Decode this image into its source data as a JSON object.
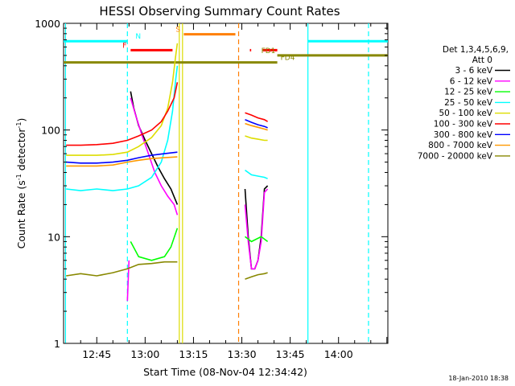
{
  "chart_data": {
    "type": "line",
    "title": "HESSI Observing Summary Count Rates",
    "xlabel": "Start Time (08-Nov-04 12:34:42)",
    "ylabel_main": "Count Rate (s",
    "ylabel_sup1": "-1",
    "ylabel_mid": " detector",
    "ylabel_sup2": "-1",
    "ylabel_end": ")",
    "y_scale": "log",
    "ylim": [
      1,
      1000
    ],
    "xlim_minutes": [
      34.7,
      135.3
    ],
    "x_ticks": [
      {
        "label": "12:45",
        "minute": 45
      },
      {
        "label": "13:00",
        "minute": 60
      },
      {
        "label": "13:15",
        "minute": 75
      },
      {
        "label": "13:30",
        "minute": 90
      },
      {
        "label": "13:45",
        "minute": 105
      },
      {
        "label": "14:00",
        "minute": 120
      }
    ],
    "y_ticks": [
      {
        "label": "1",
        "value": 1
      },
      {
        "label": "10",
        "value": 10
      },
      {
        "label": "100",
        "value": 100
      },
      {
        "label": "1000",
        "value": 1000
      }
    ],
    "legend": {
      "header1": "Det 1,3,4,5,6,9,",
      "header2": "Att 0",
      "placement": "right"
    },
    "series": [
      {
        "name": "3 - 6 keV",
        "color": "#000000",
        "segments": [
          [
            [
              55.5,
              230
            ],
            [
              56.5,
              160
            ],
            [
              58,
              110
            ],
            [
              60,
              80
            ],
            [
              62,
              60
            ],
            [
              64,
              45
            ],
            [
              66,
              35
            ],
            [
              68,
              28
            ],
            [
              70,
              20
            ]
          ],
          [
            [
              91,
              28
            ],
            [
              92,
              10
            ],
            [
              93,
              5
            ],
            [
              94,
              5
            ],
            [
              95,
              6
            ],
            [
              96,
              10
            ],
            [
              97,
              28
            ],
            [
              98,
              30
            ]
          ]
        ]
      },
      {
        "name": "6 - 12 keV",
        "color": "#ff00ff",
        "segments": [
          [
            [
              54.5,
              2.5
            ],
            [
              55,
              6
            ]
          ],
          [
            [
              55.5,
              200
            ],
            [
              57,
              140
            ],
            [
              59,
              90
            ],
            [
              61,
              60
            ],
            [
              63,
              40
            ],
            [
              65,
              30
            ],
            [
              67,
              24
            ],
            [
              69,
              20
            ],
            [
              70,
              16
            ]
          ],
          [
            [
              91,
              20
            ],
            [
              92,
              9
            ],
            [
              93,
              5
            ],
            [
              94,
              5
            ],
            [
              95,
              6
            ],
            [
              96,
              9
            ],
            [
              97,
              26
            ],
            [
              98,
              28
            ]
          ]
        ]
      },
      {
        "name": "12 - 25 keV",
        "color": "#00ff00",
        "segments": [
          [
            [
              55.5,
              9
            ],
            [
              58,
              6.5
            ],
            [
              62,
              6
            ],
            [
              66,
              6.5
            ],
            [
              68,
              8
            ],
            [
              70,
              12
            ]
          ],
          [
            [
              91,
              10
            ],
            [
              93,
              9
            ],
            [
              96,
              10
            ],
            [
              98,
              9
            ]
          ]
        ]
      },
      {
        "name": "25 - 50 keV",
        "color": "#00ffff",
        "segments": [
          [
            [
              35.5,
              28
            ],
            [
              40,
              27
            ],
            [
              45,
              28
            ],
            [
              50,
              27
            ],
            [
              54.5,
              28
            ],
            [
              58,
              30
            ],
            [
              62,
              36
            ],
            [
              65,
              50
            ],
            [
              67,
              80
            ],
            [
              68.5,
              150
            ],
            [
              69.5,
              300
            ],
            [
              70,
              400
            ]
          ],
          [
            [
              91,
              42
            ],
            [
              93,
              38
            ],
            [
              95,
              37
            ],
            [
              97,
              36
            ],
            [
              98,
              35
            ]
          ]
        ]
      },
      {
        "name": "50 - 100 keV",
        "color": "#dddd00",
        "segments": [
          [
            [
              35.5,
              58
            ],
            [
              40,
              58
            ],
            [
              45,
              58
            ],
            [
              50,
              59
            ],
            [
              54.5,
              62
            ],
            [
              58,
              70
            ],
            [
              62,
              85
            ],
            [
              65,
              110
            ],
            [
              67,
              160
            ],
            [
              68.5,
              280
            ],
            [
              69.5,
              500
            ],
            [
              70,
              650
            ]
          ],
          [
            [
              91,
              88
            ],
            [
              93,
              84
            ],
            [
              95,
              82
            ],
            [
              97,
              80
            ],
            [
              98,
              80
            ]
          ]
        ]
      },
      {
        "name": "100 - 300 keV",
        "color": "#ff0000",
        "segments": [
          [
            [
              35.5,
              72
            ],
            [
              40,
              72
            ],
            [
              45,
              73
            ],
            [
              50,
              75
            ],
            [
              54.5,
              80
            ],
            [
              58,
              88
            ],
            [
              62,
              100
            ],
            [
              65,
              120
            ],
            [
              67,
              150
            ],
            [
              69,
              200
            ],
            [
              70,
              280
            ]
          ],
          [
            [
              91,
              145
            ],
            [
              93,
              138
            ],
            [
              95,
              130
            ],
            [
              97,
              125
            ],
            [
              98,
              120
            ]
          ]
        ]
      },
      {
        "name": "300 - 800 keV",
        "color": "#0000ff",
        "segments": [
          [
            [
              35.5,
              50
            ],
            [
              40,
              49
            ],
            [
              45,
              49
            ],
            [
              50,
              50
            ],
            [
              54.5,
              52
            ],
            [
              58,
              55
            ],
            [
              62,
              58
            ],
            [
              66,
              60
            ],
            [
              70,
              62
            ]
          ],
          [
            [
              91,
              125
            ],
            [
              93,
              118
            ],
            [
              95,
              112
            ],
            [
              97,
              108
            ],
            [
              98,
              105
            ]
          ]
        ]
      },
      {
        "name": "800 - 7000 keV",
        "color": "#ff9900",
        "segments": [
          [
            [
              35.5,
              46
            ],
            [
              40,
              46
            ],
            [
              45,
              46
            ],
            [
              50,
              47
            ],
            [
              54.5,
              50
            ],
            [
              58,
              52
            ],
            [
              62,
              54
            ],
            [
              66,
              55
            ],
            [
              70,
              56
            ]
          ],
          [
            [
              91,
              115
            ],
            [
              93,
              110
            ],
            [
              95,
              106
            ],
            [
              97,
              102
            ],
            [
              98,
              100
            ]
          ]
        ]
      },
      {
        "name": "7000 - 20000 keV",
        "color": "#888800",
        "segments": [
          [
            [
              35.5,
              4.3
            ],
            [
              40,
              4.5
            ],
            [
              45,
              4.3
            ],
            [
              50,
              4.6
            ],
            [
              54.5,
              5
            ],
            [
              58,
              5.5
            ],
            [
              62,
              5.6
            ],
            [
              66,
              5.8
            ],
            [
              70,
              5.8
            ]
          ],
          [
            [
              91,
              4
            ],
            [
              93,
              4.2
            ],
            [
              95,
              4.4
            ],
            [
              97,
              4.5
            ],
            [
              98,
              4.6
            ]
          ]
        ]
      }
    ],
    "flag_bars": [
      {
        "label": "N",
        "color": "#00ffff",
        "y": 680,
        "x0": 34.7,
        "x1": 54.5,
        "label_x": 57
      },
      {
        "label": "N",
        "color": "#00ffff",
        "y": 680,
        "x0": 110.5,
        "x1": 135.3,
        "label_x": null
      },
      {
        "label": "F",
        "color": "#ff0000",
        "y": 560,
        "x0": 55.5,
        "x1": 68.5,
        "label_x": 53
      },
      {
        "label": "F",
        "color": "#ff0000",
        "y": 560,
        "x0": 92.5,
        "x1": 92.9,
        "label_x": null
      },
      {
        "label": "F",
        "color": "#ff0000",
        "y": 560,
        "x0": 96.5,
        "x1": 101,
        "label_x": null
      },
      {
        "label": "S",
        "color": "#ff7f00",
        "y": 790,
        "x0": 72,
        "x1": 88,
        "label_x": 69.5
      },
      {
        "label": "FD1",
        "color": "#888800",
        "y": 500,
        "x0": 101,
        "x1": 135.3,
        "label_x": 96
      },
      {
        "label": "FD4",
        "color": "#888800",
        "y": 430,
        "x0": 34.7,
        "x1": 101,
        "label_x": 102
      }
    ],
    "vertical_lines": [
      {
        "minute": 54.5,
        "color": "#00ffff",
        "style": "dashed"
      },
      {
        "minute": 70.6,
        "color": "#dddd00",
        "style": "solid"
      },
      {
        "minute": 71.6,
        "color": "#dddd00",
        "style": "solid"
      },
      {
        "minute": 89,
        "color": "#ff7f00",
        "style": "dashed"
      },
      {
        "minute": 110.5,
        "color": "#00ffff",
        "style": "solid"
      },
      {
        "minute": 129.3,
        "color": "#00ffff",
        "style": "dashed"
      },
      {
        "minute": 35.3,
        "color": "#00ffff",
        "style": "solid"
      }
    ],
    "footer_timestamp": "18-Jan-2010 18:38"
  }
}
